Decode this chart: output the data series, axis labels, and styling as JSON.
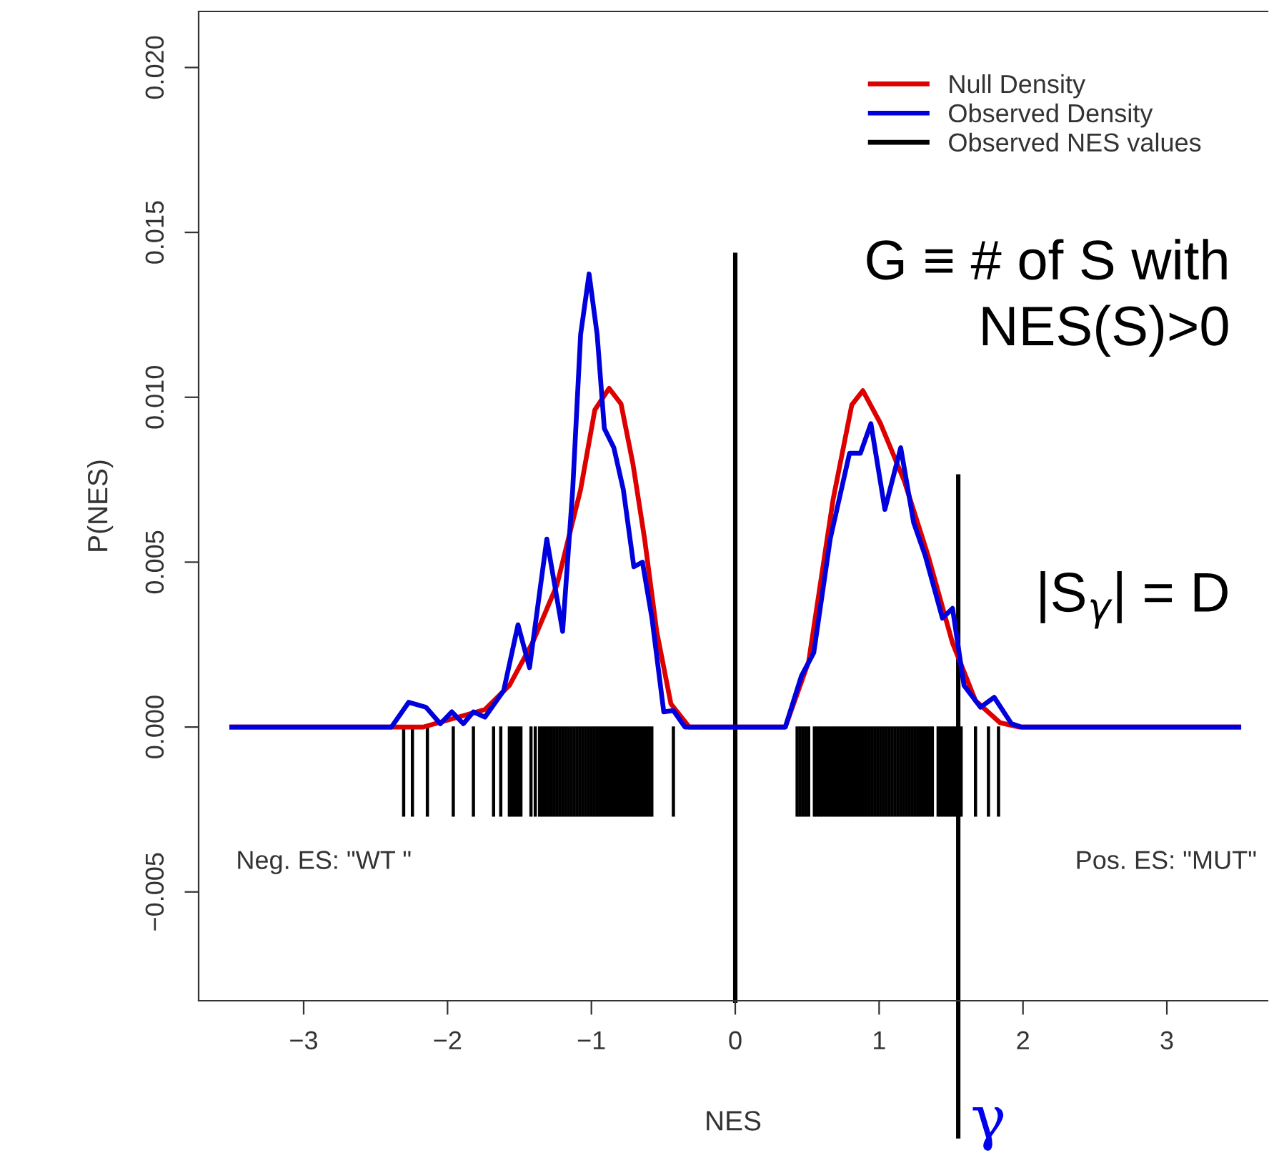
{
  "chart_data": {
    "type": "line",
    "xlabel": "NES",
    "ylabel": "P(NES)",
    "xlim": [
      -3.73,
      3.7
    ],
    "ylim": [
      -0.0083,
      0.0217
    ],
    "xticks": [
      {
        "value": -3,
        "label": "−3"
      },
      {
        "value": -2,
        "label": "−2"
      },
      {
        "value": -1,
        "label": "−1"
      },
      0,
      1,
      2,
      3
    ],
    "yticks": [
      {
        "value": -0.005,
        "label": "−0.005"
      },
      {
        "value": 0,
        "label": "0.000"
      },
      {
        "value": 0.005,
        "label": "0.005"
      },
      {
        "value": 0.01,
        "label": "0.010"
      },
      {
        "value": 0.015,
        "label": "0.015"
      },
      {
        "value": 0.02,
        "label": "0.020"
      }
    ],
    "grid": false,
    "legend": "top right",
    "line_style": "solid",
    "marker": "none",
    "series": [
      {
        "name": "Null Density",
        "color": "#dd0000",
        "x": [
          -3.5,
          -2.17,
          -1.74,
          -1.57,
          -1.41,
          -1.24,
          -1.075,
          -0.976,
          -0.877,
          -0.794,
          -0.712,
          -0.63,
          -0.546,
          -0.447,
          -0.32,
          0,
          0.348,
          0.51,
          0.68,
          0.81,
          0.887,
          1.01,
          1.175,
          1.34,
          1.51,
          1.67,
          1.84,
          1.97,
          3.5
        ],
        "values": [
          0,
          0,
          0.00053,
          0.00126,
          0.00255,
          0.0043,
          0.0072,
          0.00962,
          0.01027,
          0.0098,
          0.008,
          0.0057,
          0.0029,
          0.0007,
          0,
          0,
          0,
          0.00198,
          0.0069,
          0.00977,
          0.0102,
          0.0092,
          0.00746,
          0.0052,
          0.00255,
          0.0008,
          0.00013,
          0,
          0
        ]
      },
      {
        "name": "Observed Density",
        "color": "#0000dd",
        "x": [
          -3.5,
          -2.39,
          -2.27,
          -2.15,
          -2.05,
          -1.97,
          -1.89,
          -1.82,
          -1.74,
          -1.61,
          -1.51,
          -1.43,
          -1.31,
          -1.2,
          -1.13,
          -1.075,
          -1.016,
          -0.96,
          -0.91,
          -0.844,
          -0.778,
          -0.705,
          -0.645,
          -0.579,
          -0.497,
          -0.43,
          -0.35,
          0,
          0.348,
          0.46,
          0.546,
          0.66,
          0.794,
          0.87,
          0.943,
          1.04,
          1.15,
          1.24,
          1.32,
          1.44,
          1.51,
          1.59,
          1.705,
          1.8,
          1.92,
          1.99,
          3.5
        ],
        "values": [
          0,
          0,
          0.00075,
          0.0006,
          0.0001,
          0.00046,
          0.0001,
          0.00046,
          0.0003,
          0.0011,
          0.0031,
          0.0018,
          0.0057,
          0.0029,
          0.0072,
          0.0119,
          0.01374,
          0.0119,
          0.00905,
          0.00847,
          0.0072,
          0.00486,
          0.005,
          0.0033,
          0.00046,
          0.0005,
          0,
          0,
          0,
          0.00155,
          0.00226,
          0.0057,
          0.0083,
          0.0083,
          0.0092,
          0.0066,
          0.00847,
          0.0062,
          0.0052,
          0.0033,
          0.0036,
          0.00126,
          0.0006,
          0.0009,
          0.0001,
          0,
          0
        ]
      },
      {
        "name": "Observed NES values",
        "type": "bar",
        "color": "#000000",
        "x": [
          -2.305,
          -2.244,
          -2.14,
          -1.96,
          -1.82,
          -1.68,
          -1.63,
          -1.57,
          -1.55,
          -1.53,
          -1.51,
          -1.49,
          -1.42,
          -1.39,
          -1.36,
          -1.34,
          -1.32,
          -1.3,
          -1.28,
          -1.26,
          -1.24,
          -1.22,
          -1.2,
          -1.18,
          -1.16,
          -1.14,
          -1.12,
          -1.1,
          -1.08,
          -1.06,
          -1.04,
          -1.02,
          -1.0,
          -0.98,
          -0.96,
          -0.94,
          -0.92,
          -0.9,
          -0.88,
          -0.86,
          -0.84,
          -0.82,
          -0.8,
          -0.78,
          -0.76,
          -0.74,
          -0.72,
          -0.7,
          -0.68,
          -0.66,
          -0.64,
          -0.62,
          -0.6,
          -0.58,
          -0.43,
          0.43,
          0.45,
          0.47,
          0.49,
          0.51,
          0.55,
          0.57,
          0.59,
          0.61,
          0.63,
          0.65,
          0.67,
          0.69,
          0.71,
          0.73,
          0.75,
          0.77,
          0.79,
          0.81,
          0.83,
          0.85,
          0.87,
          0.89,
          0.91,
          0.93,
          0.95,
          0.97,
          0.99,
          1.01,
          1.03,
          1.05,
          1.07,
          1.09,
          1.11,
          1.13,
          1.15,
          1.17,
          1.19,
          1.21,
          1.23,
          1.25,
          1.27,
          1.29,
          1.31,
          1.33,
          1.35,
          1.37,
          1.41,
          1.43,
          1.45,
          1.47,
          1.49,
          1.51,
          1.53,
          1.57,
          1.67,
          1.76,
          1.83
        ],
        "values": [
          -0.0027,
          -0.0027,
          -0.0027,
          -0.0027,
          -0.0027,
          -0.0027,
          -0.0027,
          -0.0027,
          -0.0027,
          -0.0027,
          -0.0027,
          -0.0027,
          -0.0027,
          -0.0027,
          -0.0027,
          -0.0027,
          -0.0027,
          -0.0027,
          -0.0027,
          -0.0027,
          -0.0027,
          -0.0027,
          -0.0027,
          -0.0027,
          -0.0027,
          -0.0027,
          -0.0027,
          -0.0027,
          -0.0027,
          -0.0027,
          -0.0027,
          -0.0027,
          -0.0027,
          -0.0027,
          -0.0027,
          -0.0027,
          -0.0027,
          -0.0027,
          -0.0027,
          -0.0027,
          -0.0027,
          -0.0027,
          -0.0027,
          -0.0027,
          -0.0027,
          -0.0027,
          -0.0027,
          -0.0027,
          -0.0027,
          -0.0027,
          -0.0027,
          -0.0027,
          -0.0027,
          -0.0027,
          -0.0027,
          -0.0027,
          -0.0027,
          -0.0027,
          -0.0027,
          -0.0027,
          -0.0027,
          -0.0027,
          -0.0027,
          -0.0027,
          -0.0027,
          -0.0027,
          -0.0027,
          -0.0027,
          -0.0027,
          -0.0027,
          -0.0027,
          -0.0027,
          -0.0027,
          -0.0027,
          -0.0027,
          -0.0027,
          -0.0027,
          -0.0027,
          -0.0027,
          -0.0027,
          -0.0027,
          -0.0027,
          -0.0027,
          -0.0027,
          -0.0027,
          -0.0027,
          -0.0027,
          -0.0027,
          -0.0027,
          -0.0027,
          -0.0027,
          -0.0027,
          -0.0027,
          -0.0027,
          -0.0027,
          -0.0027,
          -0.0027,
          -0.0027,
          -0.0027,
          -0.0027,
          -0.0027,
          -0.0027,
          -0.0027,
          -0.0027,
          -0.0027,
          -0.0027,
          -0.0027,
          -0.0027,
          -0.0027,
          -0.0027,
          -0.0027,
          -0.0027,
          -0.0027
        ]
      }
    ],
    "ref_lines": [
      {
        "axis": "x",
        "value": 0,
        "color": "#000000"
      },
      {
        "axis": "x",
        "value": 1.55,
        "label": "γ",
        "color": "#000000"
      }
    ],
    "annotations": [
      "G ≡ # of S with\nNES(S)>0",
      "|S$_{γ}$| = D",
      "Neg. ES: \"WT \"",
      "Pos. ES: \"MUT\""
    ]
  }
}
